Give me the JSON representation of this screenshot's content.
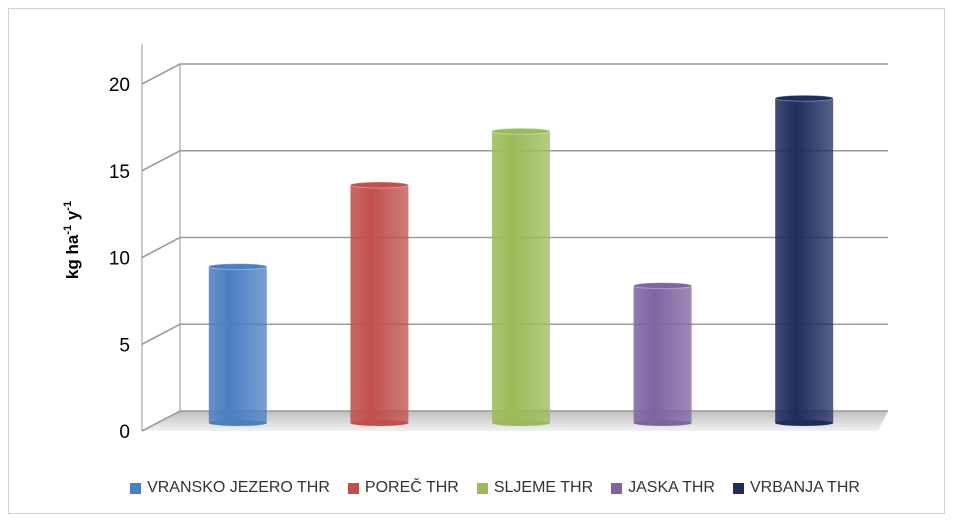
{
  "chart_data": {
    "type": "bar",
    "categories": [
      "VRANSKO JEZERO THR",
      "POREČ THR",
      "SLJEME THR",
      "JASKA THR",
      "VRBANJA THR"
    ],
    "values": [
      8.9,
      13.6,
      16.7,
      7.8,
      18.6
    ],
    "colors": [
      "#4a7fc1",
      "#c0504d",
      "#9bbb59",
      "#8064a2",
      "#1f2d5e"
    ],
    "title": "",
    "xlabel": "",
    "ylabel": {
      "main": "kg ha",
      "sup1": "-1",
      "mid": " y",
      "sup2": "-1"
    },
    "ylim": [
      0,
      20
    ],
    "yticks": [
      "0",
      "5",
      "10",
      "15",
      "20"
    ],
    "grid": true,
    "legend": "bottom",
    "style": "3d-cylinder"
  }
}
